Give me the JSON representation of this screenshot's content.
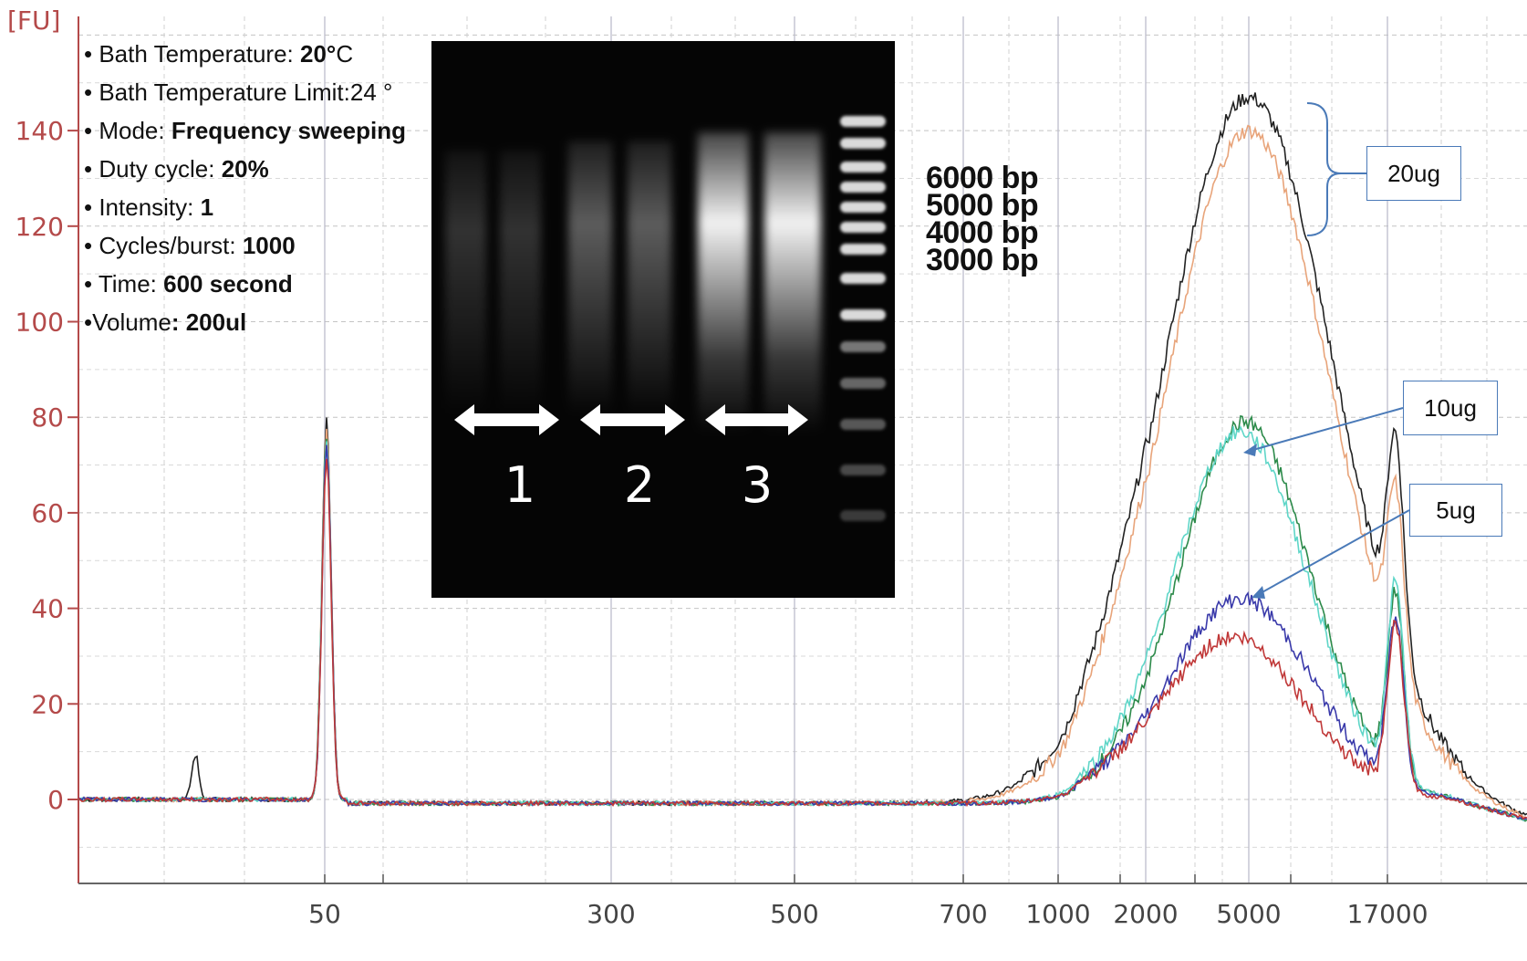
{
  "chart_data": {
    "type": "line",
    "ylabel": "[FU]",
    "y_ticks": [
      0,
      20,
      40,
      60,
      80,
      100,
      120,
      140
    ],
    "ylim": [
      -17,
      163
    ],
    "x_ticks": [
      "50",
      "300",
      "500",
      "700",
      "1000",
      "2000",
      "5000",
      "17000"
    ],
    "grid": true,
    "series": [
      {
        "name": "",
        "color": "#222222",
        "peak_x": 5000,
        "peak_y": 147
      },
      {
        "name": "",
        "color": "#e8a47a",
        "peak_x": 5000,
        "peak_y": 140
      },
      {
        "name": "",
        "color": "#2c8a4a",
        "peak_x": 5000,
        "peak_y": 79
      },
      {
        "name": "",
        "color": "#5fd6c8",
        "peak_x": 5000,
        "peak_y": 77
      },
      {
        "name": "",
        "color": "#3a3aaa",
        "peak_x": 5000,
        "peak_y": 42
      },
      {
        "name": "",
        "color": "#c03838",
        "peak_x": 5000,
        "peak_y": 34
      }
    ],
    "marker_peaks": [
      {
        "x": 50,
        "y": 80
      },
      {
        "x": 17000,
        "y": 48
      }
    ]
  },
  "conditions": [
    {
      "label": "• Bath Temperature: ",
      "value": "20°",
      "suffix": "C"
    },
    {
      "label": "• Bath Temperature Limit:24 °",
      "value": "",
      "suffix": ""
    },
    {
      "label": "• Mode: ",
      "value": "Frequency sweeping",
      "suffix": ""
    },
    {
      "label": "• Duty cycle: ",
      "value": "20%",
      "suffix": ""
    },
    {
      "label": "• Intensity: ",
      "value": "1",
      "suffix": ""
    },
    {
      "label": "• Cycles/burst: ",
      "value": "1000",
      "suffix": ""
    },
    {
      "label": "• Time: ",
      "value": "600 second",
      "suffix": ""
    },
    {
      "label": "•Volume",
      "value": ": 200ul",
      "suffix": ""
    }
  ],
  "gel": {
    "lanes": [
      "1",
      "2",
      "3"
    ]
  },
  "bp_labels": [
    "6000 bp",
    "5000 bp",
    "4000 bp",
    "3000 bp"
  ],
  "callouts": {
    "c20": "20ug",
    "c10": "10ug",
    "c5": "5ug"
  },
  "colors": {
    "axis": "#b44a4a",
    "callout_border": "#4a7ab8"
  }
}
